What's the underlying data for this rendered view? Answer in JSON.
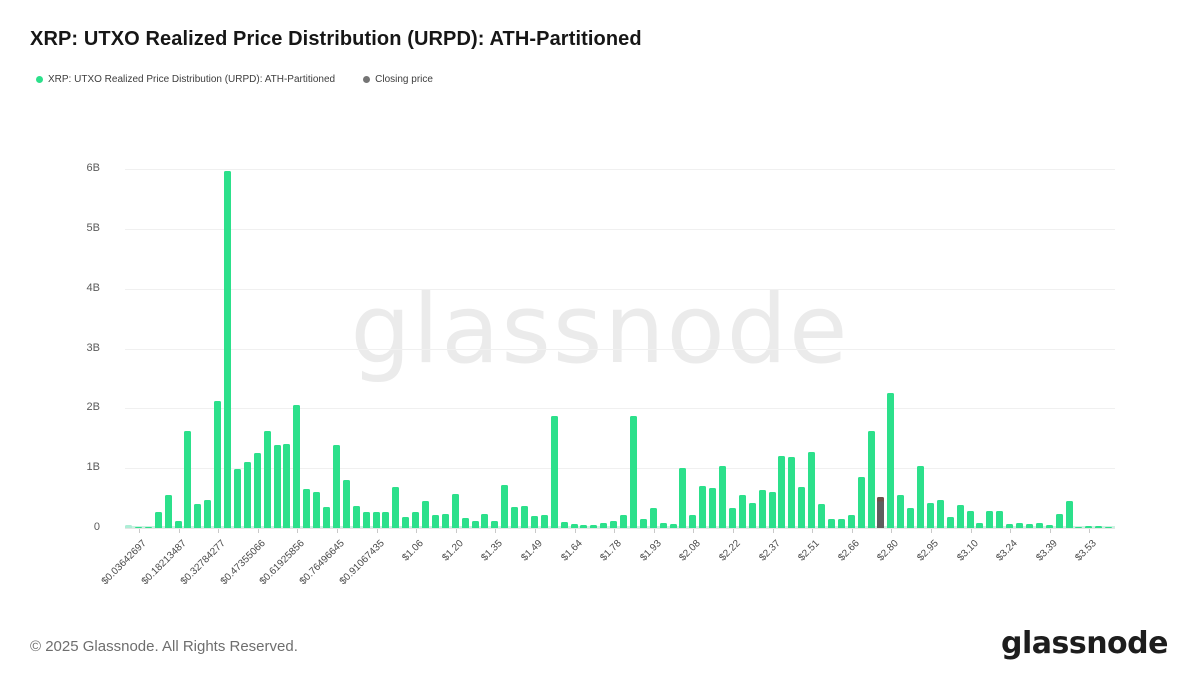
{
  "header": {
    "title": "XRP: UTXO Realized Price Distribution (URPD): ATH-Partitioned",
    "legend": [
      {
        "label": "XRP: UTXO Realized Price Distribution (URPD): ATH-Partitioned",
        "color": "#2ce08b"
      },
      {
        "label": "Closing price",
        "color": "#757575"
      }
    ]
  },
  "watermark": "glassnode",
  "footer": {
    "copyright": "© 2025 Glassnode. All Rights Reserved.",
    "logo": "glassnode"
  },
  "chart_data": {
    "type": "bar",
    "title": "XRP: UTXO Realized Price Distribution (URPD): ATH-Partitioned",
    "xlabel": "",
    "ylabel": "",
    "grid": true,
    "legend_position": "top-left",
    "y_ticks": [
      "0",
      "1B",
      "2B",
      "3B",
      "4B",
      "5B",
      "6B"
    ],
    "ylim_billions": [
      0,
      6.2
    ],
    "x_tick_labels": [
      "$0.03642697",
      "$0.18213487",
      "$0.32784277",
      "$0.47355066",
      "$0.61925856",
      "$0.76496645",
      "$0.91067435",
      "$1.06",
      "$1.20",
      "$1.35",
      "$1.49",
      "$1.64",
      "$1.78",
      "$1.93",
      "$2.08",
      "$2.22",
      "$2.37",
      "$2.51",
      "$2.66",
      "$2.80",
      "$2.95",
      "$3.10",
      "$3.24",
      "$3.39",
      "$3.53"
    ],
    "x_tick_start_index": 1,
    "x_tick_every": 4,
    "values_billions": [
      0.05,
      0.01,
      0.02,
      0.26,
      0.55,
      0.12,
      1.62,
      0.4,
      0.46,
      2.12,
      5.97,
      0.98,
      1.1,
      1.25,
      1.62,
      1.38,
      1.4,
      2.06,
      0.66,
      0.6,
      0.35,
      1.38,
      0.8,
      0.36,
      0.26,
      0.26,
      0.27,
      0.68,
      0.18,
      0.26,
      0.45,
      0.22,
      0.23,
      0.57,
      0.17,
      0.12,
      0.23,
      0.12,
      0.72,
      0.35,
      0.37,
      0.2,
      0.21,
      1.88,
      0.1,
      0.07,
      0.05,
      0.05,
      0.08,
      0.12,
      0.21,
      1.88,
      0.15,
      0.33,
      0.08,
      0.06,
      1.01,
      0.21,
      0.71,
      0.67,
      1.04,
      0.34,
      0.55,
      0.41,
      0.64,
      0.61,
      1.2,
      1.18,
      0.68,
      1.27,
      0.4,
      0.15,
      0.15,
      0.22,
      0.86,
      1.62,
      0.52,
      2.25,
      0.56,
      0.34,
      1.04,
      0.42,
      0.46,
      0.18,
      0.38,
      0.28,
      0.08,
      0.28,
      0.28,
      0.07,
      0.08,
      0.07,
      0.09,
      0.05,
      0.24,
      0.45,
      0.02,
      0.04,
      0.03,
      0.01
    ],
    "closing_price_index": 76,
    "bar_color": "#2ce08b",
    "first_bar_color": "#aeeed6",
    "closing_color": "#5e5e5e",
    "closing_color_top": "#6d5149",
    "baseline_strip_color": "#9fe8c9",
    "gridline_color": "#f0f0f0"
  }
}
